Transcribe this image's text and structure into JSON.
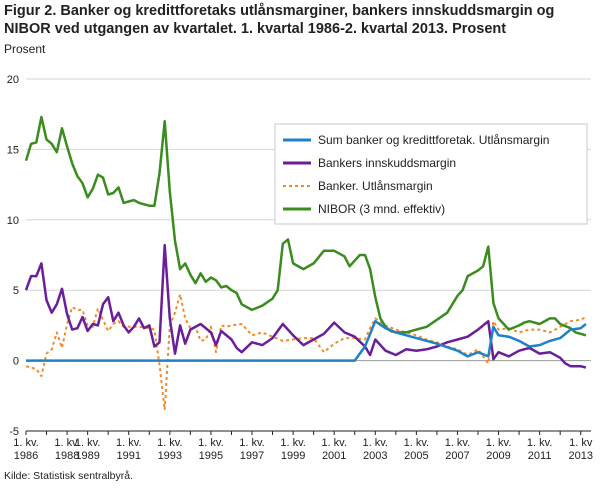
{
  "title": "Figur 2. Banker og kredittforetaks utlånsmarginer, bankers innskuddsmargin og NIBOR ved utgangen av kvartalet. 1. kvartal 1986-2. kvartal 2013. Prosent",
  "unit_label": "Prosent",
  "source": "Kilde: Statistisk sentralbyrå.",
  "chart_data": {
    "type": "line",
    "ylim": [
      -5,
      20
    ],
    "y_ticks": [
      "20",
      "15",
      "10",
      "5",
      "0",
      "-5"
    ],
    "x_ticks": [
      {
        "year": 1986,
        "l1": "1. kv.",
        "l2": "1986"
      },
      {
        "year": 1988,
        "l1": "1. kv.",
        "l2": "1988"
      },
      {
        "year": 1989,
        "l1": "1. kv.",
        "l2": "1989"
      },
      {
        "year": 1991,
        "l1": "1. kv.",
        "l2": "1991"
      },
      {
        "year": 1993,
        "l1": "1. kv.",
        "l2": "1993"
      },
      {
        "year": 1995,
        "l1": "1. kv.",
        "l2": "1995"
      },
      {
        "year": 1997,
        "l1": "1. kv.",
        "l2": "1997"
      },
      {
        "year": 1999,
        "l1": "1. kv.",
        "l2": "1999"
      },
      {
        "year": 2001,
        "l1": "1. kv.",
        "l2": "2001"
      },
      {
        "year": 2003,
        "l1": "1. kv.",
        "l2": "2003"
      },
      {
        "year": 2005,
        "l1": "1. kv.",
        "l2": "2005"
      },
      {
        "year": 2007,
        "l1": "1. kv.",
        "l2": "2007"
      },
      {
        "year": 2009,
        "l1": "1. kv.",
        "l2": "2009"
      },
      {
        "year": 2011,
        "l1": "1. kv.",
        "l2": "2011"
      },
      {
        "year": 2013,
        "l1": "1. kv",
        "l2": "2013"
      }
    ],
    "grid": "horizontal",
    "legend_position": "top-right",
    "series": [
      {
        "name": "Sum banker og kredittforetak. Utlånsmargin",
        "color": "#1f82c8",
        "style": "solid",
        "points": [
          [
            1986.0,
            0
          ],
          [
            2002.0,
            0
          ],
          [
            2002.5,
            1.0
          ],
          [
            2003.0,
            2.8
          ],
          [
            2003.5,
            2.3
          ],
          [
            2004.0,
            2.0
          ],
          [
            2005.0,
            1.6
          ],
          [
            2006.0,
            1.2
          ],
          [
            2007.0,
            0.7
          ],
          [
            2007.5,
            0.3
          ],
          [
            2008.0,
            0.6
          ],
          [
            2008.5,
            0.3
          ],
          [
            2008.75,
            2.4
          ],
          [
            2009.0,
            1.8
          ],
          [
            2009.5,
            1.7
          ],
          [
            2010.0,
            1.4
          ],
          [
            2010.5,
            1.0
          ],
          [
            2011.0,
            1.1
          ],
          [
            2011.5,
            1.4
          ],
          [
            2012.0,
            1.6
          ],
          [
            2012.5,
            2.2
          ],
          [
            2013.0,
            2.3
          ],
          [
            2013.25,
            2.6
          ]
        ]
      },
      {
        "name": "Bankers innskuddsmargin",
        "color": "#6a1e9a",
        "style": "solid",
        "points": [
          [
            1986.0,
            5.0
          ],
          [
            1986.25,
            6.0
          ],
          [
            1986.5,
            6.0
          ],
          [
            1986.75,
            6.9
          ],
          [
            1987.0,
            4.3
          ],
          [
            1987.25,
            3.4
          ],
          [
            1987.5,
            4.0
          ],
          [
            1987.75,
            5.1
          ],
          [
            1988.0,
            3.3
          ],
          [
            1988.25,
            2.2
          ],
          [
            1988.5,
            2.3
          ],
          [
            1988.75,
            3.1
          ],
          [
            1989.0,
            2.1
          ],
          [
            1989.25,
            2.6
          ],
          [
            1989.5,
            2.5
          ],
          [
            1989.75,
            4.0
          ],
          [
            1990.0,
            4.5
          ],
          [
            1990.25,
            2.8
          ],
          [
            1990.5,
            3.4
          ],
          [
            1990.75,
            2.5
          ],
          [
            1991.0,
            2.0
          ],
          [
            1991.25,
            2.4
          ],
          [
            1991.5,
            3.0
          ],
          [
            1991.75,
            2.3
          ],
          [
            1992.0,
            2.5
          ],
          [
            1992.25,
            1.0
          ],
          [
            1992.5,
            1.3
          ],
          [
            1992.75,
            8.2
          ],
          [
            1993.0,
            3.0
          ],
          [
            1993.25,
            0.5
          ],
          [
            1993.5,
            2.5
          ],
          [
            1993.75,
            1.2
          ],
          [
            1994.0,
            2.2
          ],
          [
            1994.5,
            2.6
          ],
          [
            1995.0,
            2.0
          ],
          [
            1995.25,
            1.1
          ],
          [
            1995.5,
            2.1
          ],
          [
            1996.0,
            1.5
          ],
          [
            1996.25,
            0.9
          ],
          [
            1996.5,
            0.6
          ],
          [
            1997.0,
            1.3
          ],
          [
            1997.5,
            1.1
          ],
          [
            1998.0,
            1.6
          ],
          [
            1998.5,
            2.6
          ],
          [
            1999.0,
            1.8
          ],
          [
            1999.5,
            1.1
          ],
          [
            2000.0,
            1.5
          ],
          [
            2000.5,
            1.9
          ],
          [
            2001.0,
            2.7
          ],
          [
            2001.5,
            2.0
          ],
          [
            2002.0,
            1.7
          ],
          [
            2002.5,
            1.0
          ],
          [
            2002.75,
            0.4
          ],
          [
            2003.0,
            1.5
          ],
          [
            2003.5,
            0.7
          ],
          [
            2004.0,
            0.4
          ],
          [
            2004.5,
            0.8
          ],
          [
            2005.0,
            0.7
          ],
          [
            2005.5,
            0.8
          ],
          [
            2006.0,
            1.0
          ],
          [
            2006.5,
            1.3
          ],
          [
            2007.0,
            1.5
          ],
          [
            2007.5,
            1.7
          ],
          [
            2008.0,
            2.2
          ],
          [
            2008.5,
            2.8
          ],
          [
            2008.75,
            0.1
          ],
          [
            2009.0,
            0.6
          ],
          [
            2009.5,
            0.3
          ],
          [
            2010.0,
            0.7
          ],
          [
            2010.5,
            0.9
          ],
          [
            2011.0,
            0.5
          ],
          [
            2011.5,
            0.6
          ],
          [
            2012.0,
            0.2
          ],
          [
            2012.25,
            -0.2
          ],
          [
            2012.5,
            -0.4
          ],
          [
            2013.0,
            -0.4
          ],
          [
            2013.25,
            -0.5
          ]
        ]
      },
      {
        "name": "Banker. Utlånsmargin",
        "color": "#f08a2c",
        "style": "dashed",
        "points": [
          [
            1986.0,
            -0.4
          ],
          [
            1986.25,
            -0.5
          ],
          [
            1986.5,
            -0.6
          ],
          [
            1986.75,
            -1.1
          ],
          [
            1987.0,
            0.5
          ],
          [
            1987.25,
            0.8
          ],
          [
            1987.5,
            2.0
          ],
          [
            1987.75,
            0.9
          ],
          [
            1988.0,
            2.6
          ],
          [
            1988.25,
            3.8
          ],
          [
            1988.5,
            3.6
          ],
          [
            1988.75,
            3.6
          ],
          [
            1989.0,
            2.5
          ],
          [
            1989.25,
            2.4
          ],
          [
            1989.5,
            3.7
          ],
          [
            1989.75,
            2.9
          ],
          [
            1990.0,
            2.1
          ],
          [
            1990.25,
            2.6
          ],
          [
            1990.5,
            2.8
          ],
          [
            1990.75,
            2.4
          ],
          [
            1991.0,
            2.4
          ],
          [
            1991.5,
            2.4
          ],
          [
            1992.0,
            2.3
          ],
          [
            1992.25,
            2.2
          ],
          [
            1992.5,
            -0.3
          ],
          [
            1992.75,
            -3.5
          ],
          [
            1993.0,
            2.5
          ],
          [
            1993.25,
            3.4
          ],
          [
            1993.5,
            4.7
          ],
          [
            1993.75,
            3.0
          ],
          [
            1994.0,
            2.3
          ],
          [
            1994.25,
            2.4
          ],
          [
            1994.5,
            1.4
          ],
          [
            1994.75,
            1.5
          ],
          [
            1995.0,
            2.4
          ],
          [
            1995.25,
            0.6
          ],
          [
            1995.5,
            2.5
          ],
          [
            1995.75,
            2.4
          ],
          [
            1996.0,
            2.5
          ],
          [
            1996.5,
            2.6
          ],
          [
            1997.0,
            1.8
          ],
          [
            1997.5,
            2.0
          ],
          [
            1998.0,
            1.7
          ],
          [
            1998.5,
            1.4
          ],
          [
            1999.0,
            1.5
          ],
          [
            1999.5,
            1.6
          ],
          [
            2000.0,
            1.6
          ],
          [
            2000.5,
            0.6
          ],
          [
            2001.0,
            1.2
          ],
          [
            2001.5,
            1.6
          ],
          [
            2002.0,
            1.6
          ],
          [
            2002.5,
            1.5
          ],
          [
            2002.75,
            2.3
          ],
          [
            2003.0,
            3.0
          ],
          [
            2003.5,
            2.5
          ],
          [
            2004.0,
            2.2
          ],
          [
            2004.5,
            2.0
          ],
          [
            2005.0,
            1.8
          ],
          [
            2005.5,
            1.5
          ],
          [
            2006.0,
            1.3
          ],
          [
            2006.5,
            1.0
          ],
          [
            2007.0,
            0.8
          ],
          [
            2007.5,
            0.4
          ],
          [
            2008.0,
            0.8
          ],
          [
            2008.5,
            -0.2
          ],
          [
            2008.75,
            2.8
          ],
          [
            2009.0,
            2.2
          ],
          [
            2009.5,
            2.3
          ],
          [
            2010.0,
            2.0
          ],
          [
            2010.5,
            2.2
          ],
          [
            2011.0,
            2.2
          ],
          [
            2011.5,
            2.0
          ],
          [
            2012.0,
            2.4
          ],
          [
            2012.5,
            2.8
          ],
          [
            2013.0,
            2.9
          ],
          [
            2013.25,
            3.1
          ]
        ]
      },
      {
        "name": "NIBOR (3 mnd. effektiv)",
        "color": "#3a8c1e",
        "style": "solid",
        "points": [
          [
            1986.0,
            14.2
          ],
          [
            1986.25,
            15.4
          ],
          [
            1986.5,
            15.5
          ],
          [
            1986.75,
            17.3
          ],
          [
            1987.0,
            15.7
          ],
          [
            1987.25,
            15.4
          ],
          [
            1987.5,
            14.8
          ],
          [
            1987.75,
            16.5
          ],
          [
            1988.0,
            15.2
          ],
          [
            1988.25,
            14.0
          ],
          [
            1988.5,
            13.1
          ],
          [
            1988.75,
            12.6
          ],
          [
            1989.0,
            11.6
          ],
          [
            1989.25,
            12.2
          ],
          [
            1989.5,
            13.2
          ],
          [
            1989.75,
            13.0
          ],
          [
            1990.0,
            11.8
          ],
          [
            1990.25,
            11.9
          ],
          [
            1990.5,
            12.3
          ],
          [
            1990.75,
            11.2
          ],
          [
            1991.0,
            11.3
          ],
          [
            1991.25,
            11.4
          ],
          [
            1991.5,
            11.2
          ],
          [
            1991.75,
            11.1
          ],
          [
            1992.0,
            11.0
          ],
          [
            1992.25,
            11.0
          ],
          [
            1992.5,
            13.3
          ],
          [
            1992.75,
            17.0
          ],
          [
            1993.0,
            12.0
          ],
          [
            1993.25,
            8.5
          ],
          [
            1993.5,
            6.5
          ],
          [
            1993.75,
            6.9
          ],
          [
            1994.0,
            6.1
          ],
          [
            1994.25,
            5.5
          ],
          [
            1994.5,
            6.2
          ],
          [
            1994.75,
            5.6
          ],
          [
            1995.0,
            5.9
          ],
          [
            1995.25,
            5.7
          ],
          [
            1995.5,
            5.2
          ],
          [
            1995.75,
            5.3
          ],
          [
            1996.0,
            5.0
          ],
          [
            1996.25,
            4.8
          ],
          [
            1996.5,
            4.0
          ],
          [
            1996.75,
            3.8
          ],
          [
            1997.0,
            3.6
          ],
          [
            1997.5,
            3.9
          ],
          [
            1998.0,
            4.4
          ],
          [
            1998.25,
            5.0
          ],
          [
            1998.5,
            8.3
          ],
          [
            1998.75,
            8.6
          ],
          [
            1999.0,
            6.9
          ],
          [
            1999.5,
            6.5
          ],
          [
            2000.0,
            6.9
          ],
          [
            2000.5,
            7.8
          ],
          [
            2001.0,
            7.8
          ],
          [
            2001.5,
            7.4
          ],
          [
            2001.75,
            6.7
          ],
          [
            2002.0,
            7.1
          ],
          [
            2002.25,
            7.5
          ],
          [
            2002.5,
            7.5
          ],
          [
            2002.75,
            6.5
          ],
          [
            2003.0,
            4.5
          ],
          [
            2003.25,
            3.0
          ],
          [
            2003.5,
            2.4
          ],
          [
            2003.75,
            2.1
          ],
          [
            2004.0,
            2.0
          ],
          [
            2004.5,
            2.0
          ],
          [
            2005.0,
            2.2
          ],
          [
            2005.5,
            2.4
          ],
          [
            2006.0,
            2.9
          ],
          [
            2006.5,
            3.4
          ],
          [
            2007.0,
            4.6
          ],
          [
            2007.25,
            5.0
          ],
          [
            2007.5,
            6.0
          ],
          [
            2007.75,
            6.2
          ],
          [
            2008.0,
            6.4
          ],
          [
            2008.25,
            6.7
          ],
          [
            2008.5,
            8.1
          ],
          [
            2008.75,
            4.1
          ],
          [
            2009.0,
            3.0
          ],
          [
            2009.25,
            2.6
          ],
          [
            2009.5,
            2.2
          ],
          [
            2010.0,
            2.5
          ],
          [
            2010.25,
            2.7
          ],
          [
            2010.5,
            2.8
          ],
          [
            2011.0,
            2.6
          ],
          [
            2011.5,
            3.0
          ],
          [
            2011.75,
            3.0
          ],
          [
            2012.0,
            2.6
          ],
          [
            2012.5,
            2.3
          ],
          [
            2012.75,
            2.0
          ],
          [
            2013.0,
            1.9
          ],
          [
            2013.25,
            1.8
          ]
        ]
      }
    ]
  }
}
